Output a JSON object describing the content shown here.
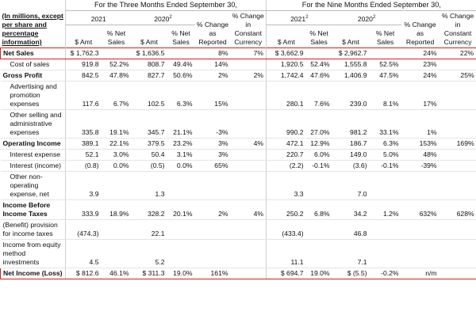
{
  "header": {
    "units": "(In millions, except per share and percentage information)",
    "periods": [
      {
        "title": "For the Three Months Ended September 30,",
        "years": [
          {
            "year": "2021"
          },
          {
            "year": "2020",
            "note": "2"
          }
        ],
        "amount": "$ Amt",
        "pct_net_sales": "% Net Sales",
        "change_reported": "% Change as Reported",
        "change_constant": "% Change in Constant Currency"
      },
      {
        "title": "For the Nine Months Ended September 30,",
        "years": [
          {
            "year": "2021",
            "note": "2"
          },
          {
            "year": "2020",
            "note": "2"
          }
        ],
        "amount": "$ Amt",
        "pct_net_sales": "% Net Sales",
        "change_reported": "% Change as Reported",
        "change_constant": "% Change in Constant Currency"
      }
    ]
  },
  "table": {
    "rows": [
      {
        "label": "Net Sales",
        "bold": true,
        "highlight": true,
        "cells": [
          "$ 1,762.3",
          null,
          "$ 1,636.5",
          null,
          "8%",
          "7%",
          "$ 3,662.9",
          null,
          "$ 2,962.7",
          null,
          "24%",
          "22%"
        ]
      },
      {
        "label": "Cost of sales",
        "indent": true,
        "cells": [
          "919.8",
          "52.2%",
          "808.7",
          "49.4%",
          "14%",
          null,
          "1,920.5",
          "52.4%",
          "1,555.8",
          "52.5%",
          "23%",
          null
        ]
      },
      {
        "label": "Gross Profit",
        "bold": true,
        "cells": [
          "842.5",
          "47.8%",
          "827.7",
          "50.6%",
          "2%",
          "2%",
          "1,742.4",
          "47.6%",
          "1,406.9",
          "47.5%",
          "24%",
          "25%"
        ]
      },
      {
        "label": "Advertising and promotion expenses",
        "indent": true,
        "cells": [
          "117.6",
          "6.7%",
          "102.5",
          "6.3%",
          "15%",
          null,
          "280.1",
          "7.6%",
          "239.0",
          "8.1%",
          "17%",
          null
        ]
      },
      {
        "label": "Other selling and administrative expenses",
        "indent": true,
        "cells": [
          "335.8",
          "19.1%",
          "345.7",
          "21.1%",
          "-3%",
          null,
          "990.2",
          "27.0%",
          "981.2",
          "33.1%",
          "1%",
          null
        ]
      },
      {
        "label": "Operating Income",
        "bold": true,
        "cells": [
          "389.1",
          "22.1%",
          "379.5",
          "23.2%",
          "3%",
          "4%",
          "472.1",
          "12.9%",
          "186.7",
          "6.3%",
          "153%",
          "169%"
        ]
      },
      {
        "label": "Interest expense",
        "indent": true,
        "cells": [
          "52.1",
          "3.0%",
          "50.4",
          "3.1%",
          "3%",
          null,
          "220.7",
          "6.0%",
          "149.0",
          "5.0%",
          "48%",
          null
        ]
      },
      {
        "label": "Interest (income)",
        "indent": true,
        "cells": [
          "(0.8)",
          "0.0%",
          "(0.5)",
          "0.0%",
          "65%",
          null,
          "(2.2)",
          "-0.1%",
          "(3.6)",
          "-0.1%",
          "-39%",
          null
        ]
      },
      {
        "label": "Other non-operating expense, net",
        "indent": true,
        "cells": [
          "3.9",
          null,
          "1.3",
          null,
          null,
          null,
          "3.3",
          null,
          "7.0",
          null,
          null,
          null
        ]
      },
      {
        "label": "Income Before Income Taxes",
        "bold": true,
        "cells": [
          "333.9",
          "18.9%",
          "328.2",
          "20.1%",
          "2%",
          "4%",
          "250.2",
          "6.8%",
          "34.2",
          "1.2%",
          "632%",
          "628%"
        ]
      },
      {
        "label": "(Benefit) provision for income taxes",
        "cells": [
          "(474.3)",
          null,
          "22.1",
          null,
          null,
          null,
          "(433.4)",
          null,
          "46.8",
          null,
          null,
          null
        ]
      },
      {
        "label": "Income from equity method investments",
        "cells": [
          "4.5",
          null,
          "5.2",
          null,
          null,
          null,
          "11.1",
          null,
          "7.1",
          null,
          null,
          null
        ]
      },
      {
        "label": "Net Income (Loss)",
        "bold": true,
        "highlight": true,
        "cells": [
          "$ 812.6",
          "46.1%",
          "$ 311.3",
          "19.0%",
          "161%",
          null,
          "$ 694.7",
          "19.0%",
          "$ (5.5)",
          "-0.2%",
          "n/m",
          null
        ]
      }
    ]
  }
}
